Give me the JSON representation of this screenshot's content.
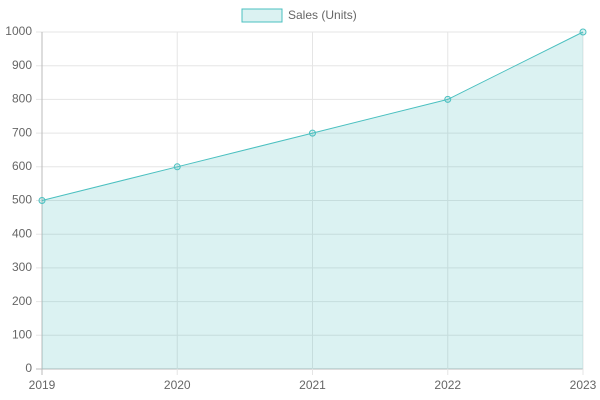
{
  "chart_data": {
    "type": "area",
    "categories": [
      "2019",
      "2020",
      "2021",
      "2022",
      "2023"
    ],
    "series": [
      {
        "name": "Sales (Units)",
        "color": "#4bc0c0",
        "values": [
          500,
          600,
          700,
          800,
          1000
        ]
      }
    ],
    "ylim": [
      0,
      1000
    ],
    "yticks": [
      0,
      100,
      200,
      300,
      400,
      500,
      600,
      700,
      800,
      900,
      1000
    ],
    "grid": true,
    "legend": "top"
  }
}
